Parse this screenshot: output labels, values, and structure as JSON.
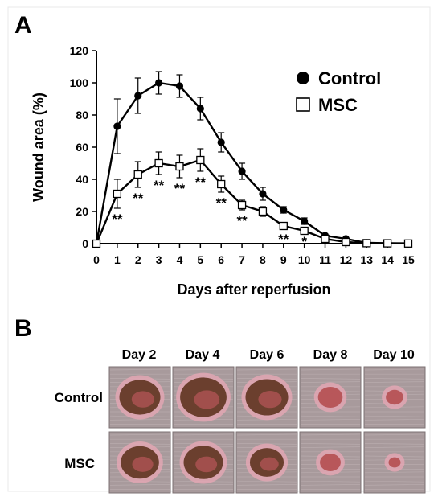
{
  "panels": {
    "a": "A",
    "b": "B"
  },
  "chart_data": {
    "type": "line",
    "xlabel": "Days after reperfusion",
    "ylabel": "Wound area (%)",
    "x": [
      0,
      1,
      2,
      3,
      4,
      5,
      6,
      7,
      8,
      9,
      10,
      11,
      12,
      13,
      14,
      15
    ],
    "xticks": [
      "0",
      "1",
      "2",
      "3",
      "4",
      "5",
      "6",
      "7",
      "8",
      "9",
      "10",
      "11",
      "12",
      "13",
      "14",
      "15"
    ],
    "yticks": [
      "0",
      "20",
      "40",
      "60",
      "80",
      "100",
      "120"
    ],
    "ylim": [
      0,
      120
    ],
    "xlim": [
      0,
      15
    ],
    "grid": false,
    "legend_position": "top-right",
    "series": [
      {
        "name": "Control",
        "marker": "filled-circle",
        "color": "#000000",
        "values": [
          0,
          73,
          92,
          100,
          98,
          84,
          63,
          45,
          31,
          21,
          14,
          5,
          3,
          0.5,
          0.3,
          0.2
        ],
        "errors": [
          0,
          17,
          11,
          7,
          7,
          7,
          6,
          5,
          4,
          2,
          2,
          1,
          0.5,
          0.2,
          0.2,
          0.1
        ]
      },
      {
        "name": "MSC",
        "marker": "open-square",
        "color": "#000000",
        "values": [
          0,
          31,
          43,
          50,
          48,
          52,
          37,
          24,
          20,
          11,
          8,
          3,
          1,
          0.3,
          0.2,
          0.1
        ],
        "errors": [
          0,
          9,
          8,
          7,
          7,
          7,
          5,
          3,
          3,
          1.5,
          1.5,
          1,
          0.5,
          0.2,
          0.1,
          0.1
        ]
      }
    ],
    "annotations": [
      {
        "x": 1,
        "text": "**"
      },
      {
        "x": 2,
        "text": "**"
      },
      {
        "x": 3,
        "text": "**"
      },
      {
        "x": 4,
        "text": "**"
      },
      {
        "x": 5,
        "text": "**"
      },
      {
        "x": 6,
        "text": "**"
      },
      {
        "x": 7,
        "text": "**"
      },
      {
        "x": 9,
        "text": "**"
      },
      {
        "x": 10,
        "text": "*"
      }
    ]
  },
  "photos": {
    "columns": [
      "Day 2",
      "Day 4",
      "Day 6",
      "Day 8",
      "Day 10"
    ],
    "rows": [
      "Control",
      "MSC"
    ],
    "wound_sizes": [
      [
        0.75,
        0.85,
        0.78,
        0.45,
        0.32
      ],
      [
        0.7,
        0.72,
        0.62,
        0.38,
        0.22
      ]
    ],
    "colors": {
      "skin": "#a89a9c",
      "wound_dark": "#6b3f2e",
      "wound_red": "#b8575a",
      "rim_pink": "#e9a7b6"
    }
  }
}
